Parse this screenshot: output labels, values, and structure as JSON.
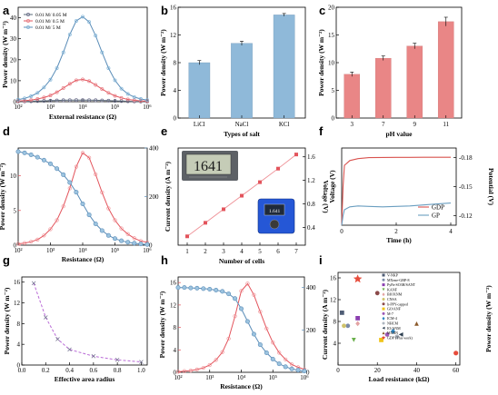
{
  "colors": {
    "blue": "#5b8db8",
    "blue_marker": "#7fb4d8",
    "red": "#e3545c",
    "grey_line": "#5a6b7a",
    "bar_blue": "#8fb9d9",
    "bar_red": "#e98686",
    "gdp": "#d9534f",
    "gp": "#6a9ec0",
    "dash": "#b96ad6"
  },
  "chart_data": [
    {
      "panel": "a",
      "type": "line",
      "xlabel": "External resistance (Ω)",
      "ylabel": "Power density (W m⁻²)",
      "xscale": "log",
      "xlim": [
        100,
        1000000
      ],
      "ylim": [
        0,
        45
      ],
      "xticks": [
        "10²",
        "10³",
        "10⁴",
        "10⁵",
        "10⁶"
      ],
      "yticks": [
        "0",
        "10",
        "20",
        "30",
        "40"
      ],
      "legend_position": "top-left",
      "series": [
        {
          "name": "0.01 M/ 0.05 M",
          "x": [
            100,
            158,
            251,
            398,
            631,
            1000,
            1585,
            2512,
            3981,
            6310,
            10000,
            15850,
            25120,
            39810,
            63100,
            100000,
            158500,
            251200,
            398100,
            631000,
            1000000
          ],
          "y": [
            0.1,
            0.15,
            0.2,
            0.3,
            0.4,
            0.5,
            0.6,
            0.7,
            0.75,
            0.8,
            0.8,
            0.75,
            0.7,
            0.6,
            0.5,
            0.4,
            0.3,
            0.2,
            0.15,
            0.1,
            0.08
          ]
        },
        {
          "name": "0.01 M/ 0.5 M",
          "x": [
            100,
            158,
            251,
            398,
            631,
            1000,
            1585,
            2512,
            3981,
            6310,
            10000,
            15850,
            25120,
            39810,
            63100,
            100000,
            158500,
            251200,
            398100,
            631000,
            1000000
          ],
          "y": [
            0.3,
            0.5,
            0.8,
            1.3,
            2.0,
            3.0,
            4.5,
            6.5,
            8.5,
            10.2,
            10.6,
            9.8,
            8.0,
            6.0,
            4.2,
            2.8,
            1.8,
            1.1,
            0.7,
            0.4,
            0.25
          ]
        },
        {
          "name": "0.01 M/ 5 M",
          "x": [
            100,
            158,
            251,
            398,
            631,
            1000,
            1585,
            2512,
            3981,
            6310,
            10000,
            15850,
            25120,
            39810,
            63100,
            100000,
            158500,
            251200,
            398100,
            631000,
            1000000
          ],
          "y": [
            1.0,
            1.6,
            2.6,
            4.2,
            6.8,
            10.5,
            16.0,
            23.5,
            32.0,
            38.5,
            40.5,
            38.0,
            31.5,
            23.5,
            16.0,
            10.2,
            6.2,
            3.7,
            2.2,
            1.3,
            0.8
          ]
        }
      ]
    },
    {
      "panel": "b",
      "type": "bar",
      "xlabel": "Types of salt",
      "ylabel": "Power density (W m⁻²)",
      "categories": [
        "LiCl",
        "NaCl",
        "KCl"
      ],
      "values": [
        8.0,
        10.8,
        14.9
      ],
      "errors": [
        0.3,
        0.3,
        0.2
      ],
      "ylim": [
        0,
        16
      ],
      "yticks": [
        "0",
        "4",
        "8",
        "12",
        "16"
      ]
    },
    {
      "panel": "c",
      "type": "bar",
      "xlabel": "pH value",
      "ylabel": "Power density (W m⁻²)",
      "categories": [
        "3",
        "7",
        "9",
        "11"
      ],
      "values": [
        7.9,
        10.8,
        13.0,
        17.4
      ],
      "errors": [
        0.4,
        0.4,
        0.5,
        0.8
      ],
      "ylim": [
        0,
        20
      ],
      "yticks": [
        "0",
        "5",
        "10",
        "15",
        "20"
      ]
    },
    {
      "panel": "d",
      "type": "line",
      "xlabel": "Resistance (Ω)",
      "ylabel": "Power density (W m⁻²)",
      "y2label": "Current density (A m⁻²)",
      "xscale": "log",
      "xlim": [
        100,
        1000000
      ],
      "ylim": [
        0,
        14
      ],
      "y2lim": [
        0,
        400
      ],
      "xticks": [
        "10²",
        "10³",
        "10⁴",
        "10⁵",
        "10⁶"
      ],
      "yticks": [
        "0",
        "5",
        "10"
      ],
      "y2ticks": [
        "0",
        "200",
        "400"
      ],
      "series": [
        {
          "x": [
            100,
            158,
            251,
            398,
            631,
            1000,
            1585,
            2512,
            3981,
            6310,
            10000,
            15850,
            25120,
            39810,
            63100,
            100000,
            158500,
            251200,
            398100,
            631000,
            1000000
          ],
          "y": [
            0.2,
            0.3,
            0.5,
            0.8,
            1.4,
            2.3,
            3.6,
            5.6,
            8.2,
            11.3,
            13.3,
            12.6,
            10.2,
            7.6,
            5.3,
            3.6,
            2.4,
            1.6,
            1.0,
            0.6,
            0.4
          ]
        },
        {
          "x": [
            100,
            158,
            251,
            398,
            631,
            1000,
            1585,
            2512,
            3981,
            6310,
            10000,
            15850,
            25120,
            39810,
            63100,
            100000,
            158500,
            251200,
            398100,
            631000,
            1000000
          ],
          "y2": [
            385,
            380,
            372,
            362,
            350,
            335,
            315,
            290,
            258,
            218,
            170,
            125,
            88,
            60,
            40,
            27,
            18,
            12,
            8,
            5,
            3
          ]
        }
      ]
    },
    {
      "panel": "e",
      "type": "line",
      "xlabel": "Number of cells",
      "ylabel": "Voltage (V)",
      "x": [
        1,
        2,
        3,
        4,
        5,
        6,
        7
      ],
      "y": [
        0.25,
        0.48,
        0.71,
        0.94,
        1.17,
        1.4,
        1.64
      ],
      "xlim": [
        0.5,
        7.5
      ],
      "ylim": [
        0.1,
        1.75
      ],
      "yticks": [
        "0.4",
        "0.8",
        "1.2",
        "1.6"
      ],
      "meter_reading": "1641",
      "meter_small": "1.641"
    },
    {
      "panel": "f",
      "type": "line",
      "xlabel": "Time (h)",
      "ylabel": "Potential (V)",
      "xlim": [
        0,
        4.2
      ],
      "ylim": [
        -0.19,
        -0.11
      ],
      "xticks": [
        "0",
        "2",
        "4"
      ],
      "yticks": [
        "-0.18",
        "-0.15",
        "-0.12"
      ],
      "legend_position": "bottom-right",
      "series": [
        {
          "name": "GDP",
          "x": [
            0,
            0.05,
            0.1,
            0.3,
            0.6,
            1,
            1.5,
            2,
            2.5,
            3,
            3.5,
            4
          ],
          "y": [
            -0.11,
            -0.15,
            -0.172,
            -0.177,
            -0.179,
            -0.18,
            -0.1802,
            -0.1803,
            -0.1803,
            -0.1804,
            -0.1804,
            -0.1804
          ]
        },
        {
          "name": "GP",
          "x": [
            0,
            0.05,
            0.1,
            0.3,
            0.6,
            1,
            1.5,
            2,
            2.5,
            3,
            3.5,
            4
          ],
          "y": [
            -0.11,
            -0.12,
            -0.126,
            -0.129,
            -0.13,
            -0.1295,
            -0.129,
            -0.1295,
            -0.13,
            -0.131,
            -0.132,
            -0.133
          ]
        }
      ]
    },
    {
      "panel": "g",
      "type": "scatter",
      "xlabel": "Effective area radius",
      "ylabel": "Power density (W m⁻²)",
      "x": [
        0.1,
        0.2,
        0.3,
        0.4,
        0.6,
        0.8,
        1.0
      ],
      "y": [
        15.8,
        9.2,
        5.0,
        3.0,
        1.7,
        1.0,
        0.6
      ],
      "xlim": [
        0,
        1.05
      ],
      "ylim": [
        0,
        17
      ],
      "xticks": [
        "0.0",
        "0.2",
        "0.4",
        "0.6",
        "0.8",
        "1.0"
      ],
      "yticks": [
        "0",
        "4",
        "8",
        "12",
        "16"
      ]
    },
    {
      "panel": "h",
      "type": "line",
      "xlabel": "Resistance (Ω)",
      "ylabel": "Power density (W m⁻²)",
      "y2label": "Current density (A m⁻²)",
      "xscale": "log",
      "xlim": [
        100,
        1000000
      ],
      "ylim": [
        0,
        17
      ],
      "y2lim": [
        0,
        450
      ],
      "xticks": [
        "10²",
        "10³",
        "10⁴",
        "10⁵",
        "10⁶"
      ],
      "yticks": [
        "0",
        "4",
        "8",
        "12",
        "16"
      ],
      "y2ticks": [
        "0",
        "200",
        "400"
      ],
      "series": [
        {
          "x": [
            100,
            158,
            251,
            398,
            631,
            1000,
            1585,
            2512,
            3981,
            6310,
            10000,
            15850,
            25120,
            39810,
            63100,
            100000,
            158500,
            251200,
            398100,
            631000,
            1000000
          ],
          "y": [
            0.1,
            0.2,
            0.3,
            0.5,
            0.8,
            1.3,
            2.2,
            3.6,
            6.0,
            10.0,
            14.5,
            15.8,
            13.8,
            10.8,
            7.8,
            5.3,
            3.5,
            2.3,
            1.4,
            0.9,
            0.5
          ]
        },
        {
          "x": [
            100,
            158,
            251,
            398,
            631,
            1000,
            1585,
            2512,
            3981,
            6310,
            10000,
            15850,
            25120,
            39810,
            63100,
            100000,
            158500,
            251200,
            398100,
            631000,
            1000000
          ],
          "y2": [
            400,
            400,
            398,
            397,
            395,
            392,
            388,
            382,
            370,
            348,
            300,
            240,
            180,
            130,
            92,
            62,
            40,
            26,
            16,
            10,
            6
          ]
        }
      ]
    },
    {
      "panel": "i",
      "type": "scatter",
      "xlabel": "Load resistance (kΩ)",
      "ylabel": "Power density (W m⁻²)",
      "xlim": [
        0,
        62
      ],
      "ylim": [
        0,
        17
      ],
      "xticks": [
        "0",
        "20",
        "40",
        "60"
      ],
      "yticks": [
        "4",
        "8",
        "12",
        "16"
      ],
      "points": [
        {
          "name": "V-NKP",
          "x": 2,
          "y": 9.6,
          "color": "#4f5d75",
          "shape": "square"
        },
        {
          "name": "MXene-GBP-8",
          "x": 5,
          "y": 7.2,
          "color": "#7a8aa8",
          "shape": "circle"
        },
        {
          "name": "PyPa-SO3H/SANT",
          "x": 10,
          "y": 8.6,
          "color": "#8b3fb0",
          "shape": "square"
        },
        {
          "name": "KANF",
          "x": 8,
          "y": 4.6,
          "color": "#6ab04c",
          "shape": "tri-down"
        },
        {
          "name": "BIOXNM",
          "x": 10,
          "y": 7.6,
          "color": "#e3a3a3",
          "shape": "diamond"
        },
        {
          "name": "CNSA",
          "x": 3,
          "y": 7.2,
          "color": "#d0c36b",
          "shape": "circle"
        },
        {
          "name": "h-PPY-capped",
          "x": 20,
          "y": 13.2,
          "color": "#8b4a4a",
          "shape": "circle"
        },
        {
          "name": "GO/ANF",
          "x": 22,
          "y": 4.6,
          "color": "#f0c419",
          "shape": "square"
        },
        {
          "name": "M-7",
          "x": 25,
          "y": 5.6,
          "color": "#9b59b6",
          "shape": "circle"
        },
        {
          "name": "ICM-4",
          "x": 28,
          "y": 6.2,
          "color": "#2e86c1",
          "shape": "diamond"
        },
        {
          "name": "NHCM",
          "x": 30,
          "y": 5.2,
          "color": "#aeb6bf",
          "shape": "circle"
        },
        {
          "name": "IO/ANM",
          "x": 32,
          "y": 5.6,
          "color": "#2c3e50",
          "shape": "tri-left"
        },
        {
          "name": "MXBN",
          "x": 40,
          "y": 7.6,
          "color": "#8b5a2b",
          "shape": "tri"
        },
        {
          "name": "GDP (This work)",
          "x": 10,
          "y": 15.8,
          "color": "#e74c3c",
          "shape": "star"
        }
      ],
      "extra_points": [
        {
          "x": 60,
          "y": 2.2,
          "color": "#e74c3c",
          "shape": "circle"
        }
      ]
    }
  ]
}
